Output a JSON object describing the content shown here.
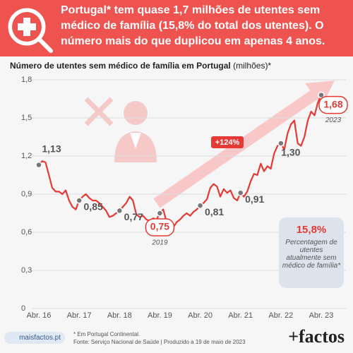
{
  "header": {
    "title": "Portugal* tem quase 1,7 milhões de utentes sem médico de família (15,8% do total dos utentes). O número mais do que duplicou em apenas 4 anos."
  },
  "chart_data": {
    "type": "line",
    "title": "Número de utentes sem médico de família em Portugal",
    "y_unit": "(milhões)*",
    "categories": [
      "Abr. 16",
      null,
      null,
      null,
      null,
      null,
      null,
      null,
      null,
      null,
      null,
      null,
      "Abr. 17",
      null,
      null,
      null,
      null,
      null,
      null,
      null,
      null,
      null,
      null,
      null,
      "Abr. 18",
      null,
      null,
      null,
      null,
      null,
      null,
      null,
      null,
      null,
      null,
      null,
      "Abr. 19",
      null,
      null,
      null,
      null,
      null,
      null,
      null,
      null,
      null,
      null,
      null,
      "Abr. 20",
      null,
      null,
      null,
      null,
      null,
      null,
      null,
      null,
      null,
      null,
      null,
      "Abr. 21",
      null,
      null,
      null,
      null,
      null,
      null,
      null,
      null,
      null,
      null,
      null,
      "Abr. 22",
      null,
      null,
      null,
      null,
      null,
      null,
      null,
      null,
      null,
      null,
      null,
      "Abr. 23"
    ],
    "values": [
      1.13,
      1.16,
      1.15,
      1.05,
      0.95,
      0.92,
      0.92,
      0.9,
      0.93,
      0.85,
      0.8,
      0.78,
      0.85,
      0.88,
      0.9,
      0.87,
      0.85,
      0.85,
      0.83,
      0.8,
      0.77,
      0.72,
      0.73,
      0.75,
      0.77,
      0.8,
      0.83,
      0.88,
      0.85,
      0.74,
      0.72,
      0.73,
      0.7,
      0.69,
      0.71,
      0.7,
      0.75,
      0.78,
      0.68,
      0.65,
      0.64,
      0.68,
      0.7,
      0.73,
      0.75,
      0.73,
      0.76,
      0.78,
      0.81,
      0.83,
      0.86,
      0.95,
      0.98,
      0.96,
      0.88,
      0.94,
      0.91,
      0.93,
      0.87,
      0.85,
      0.91,
      0.88,
      0.92,
      1.0,
      1.06,
      1.05,
      1.14,
      1.08,
      1.12,
      1.1,
      1.22,
      1.28,
      1.3,
      1.25,
      1.38,
      1.45,
      1.48,
      1.3,
      1.28,
      1.35,
      1.48,
      1.55,
      1.52,
      1.62,
      1.68
    ],
    "value_labels": [
      "1,13",
      null,
      null,
      null,
      null,
      null,
      null,
      null,
      null,
      null,
      null,
      null,
      "0,85",
      null,
      null,
      null,
      null,
      null,
      null,
      null,
      null,
      null,
      null,
      null,
      "0,77",
      null,
      null,
      null,
      null,
      null,
      null,
      null,
      null,
      null,
      null,
      null,
      "0,75",
      null,
      null,
      null,
      null,
      null,
      null,
      null,
      null,
      null,
      null,
      null,
      "0,81",
      null,
      null,
      null,
      null,
      null,
      null,
      null,
      null,
      null,
      null,
      null,
      "0,91",
      null,
      null,
      null,
      null,
      null,
      null,
      null,
      null,
      null,
      null,
      null,
      "1,30",
      null,
      null,
      null,
      null,
      null,
      null,
      null,
      null,
      null,
      null,
      null,
      "1,68"
    ],
    "color": "#e53935",
    "ylim": [
      0,
      1.8
    ],
    "yticks": [
      0,
      {
        "value": 0.3,
        "label": "0,3"
      },
      {
        "value": 0.6,
        "label": "0,6"
      },
      {
        "value": 0.9,
        "label": "0,9"
      },
      {
        "value": 1.2,
        "label": "1,2"
      },
      {
        "value": 1.5,
        "label": "1,5"
      },
      {
        "value": 1.8,
        "label": "1,8"
      }
    ],
    "grid": true,
    "annotations": {
      "growth": "+124%",
      "year_low": "2019",
      "year_last": "2023"
    },
    "info_box": {
      "value": "15,8%",
      "text": "Percentagem de utentes atualmente sem médico de família*"
    }
  },
  "footer": {
    "site": "maisfactos.pt",
    "note": "* Em Portugal Continental.",
    "source": "Fonte: Serviço Nacional de Saúde | Produzido a 19 de maio de 2023",
    "brand": "+factos"
  }
}
